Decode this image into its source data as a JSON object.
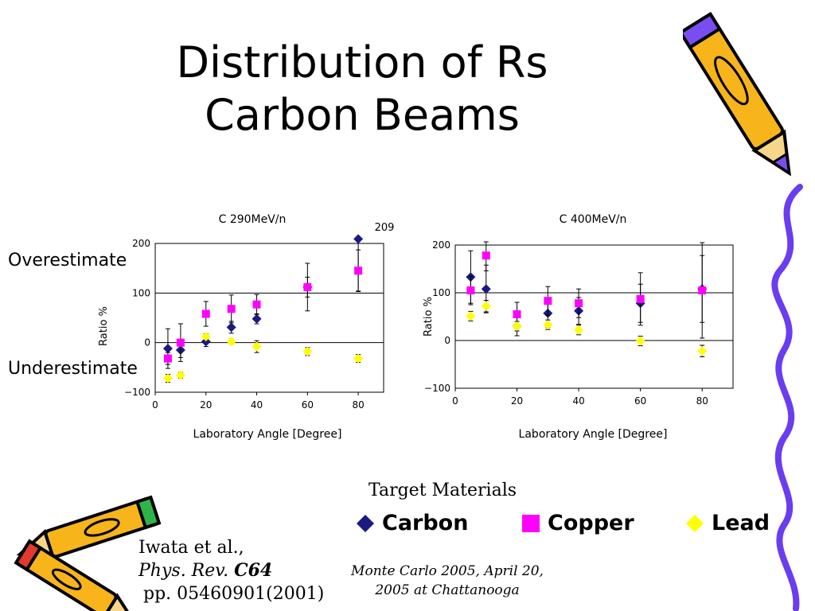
{
  "slide": {
    "title_line1": "Distribution of Rs",
    "title_line2": "Carbon Beams",
    "overestimate": "Overestimate",
    "underestimate": "Underestimate",
    "target_title": "Target Materials",
    "legend": [
      {
        "name": "Carbon",
        "color": "#1a1a80",
        "shape": "diamond"
      },
      {
        "name": "Copper",
        "color": "#ff00ff",
        "shape": "square"
      },
      {
        "name": "Lead",
        "color": "#ffff00",
        "shape": "diamond"
      }
    ],
    "citation": {
      "line1": "Iwata et al.,",
      "journal": "Phys. Rev.",
      "volume": "C64",
      "line3": "pp. 05460901(2001)"
    },
    "footer_line1": "Monte Carlo 2005, April 20,",
    "footer_line2": "2005 at Chattanooga"
  },
  "colors": {
    "carbon": "#1a1a80",
    "copper": "#ff00ff",
    "lead": "#ffff00"
  },
  "chart_data": [
    {
      "type": "scatter",
      "title": "C 290MeV/n",
      "xlabel": "Laboratory Angle [Degree]",
      "ylabel": "Ratio %",
      "xlim": [
        0,
        90
      ],
      "ylim": [
        -100,
        200
      ],
      "xticks": [
        0,
        20,
        40,
        60,
        80
      ],
      "yticks": [
        -100,
        0,
        100,
        200
      ],
      "ytick_labels": [
        "−100",
        "0",
        "100",
        "200"
      ],
      "grid": "horizontal lines at 0, 100, 200",
      "annotation": {
        "text": "209",
        "x": 80,
        "y": 209
      },
      "series": [
        {
          "name": "Carbon",
          "x": [
            5,
            10,
            20,
            30,
            40,
            60,
            80
          ],
          "y": [
            -12,
            -15,
            2,
            31,
            48,
            112,
            209
          ],
          "err": [
            40,
            15,
            10,
            12,
            10,
            20,
            105
          ]
        },
        {
          "name": "Copper",
          "x": [
            5,
            10,
            20,
            30,
            40,
            60,
            80
          ],
          "y": [
            -32,
            0,
            58,
            68,
            77,
            112,
            145
          ],
          "err": [
            12,
            38,
            25,
            28,
            20,
            48,
            42
          ]
        },
        {
          "name": "Lead",
          "x": [
            5,
            10,
            20,
            30,
            40,
            60,
            80
          ],
          "y": [
            -72,
            -66,
            12,
            2,
            -8,
            -18,
            -32
          ],
          "err": [
            8,
            6,
            6,
            5,
            12,
            8,
            8
          ]
        }
      ]
    },
    {
      "type": "scatter",
      "title": "C 400MeV/n",
      "xlabel": "Laboratory Angle [Degree]",
      "ylabel": "Ratio %",
      "xlim": [
        0,
        90
      ],
      "ylim": [
        -100,
        200
      ],
      "xticks": [
        0,
        20,
        40,
        60,
        80
      ],
      "yticks": [
        -100,
        0,
        100,
        200
      ],
      "ytick_labels": [
        "−100",
        "0",
        "100",
        "200"
      ],
      "grid": "horizontal lines at 0, 100, 200",
      "series": [
        {
          "name": "Carbon",
          "x": [
            5,
            10,
            20,
            30,
            40,
            60,
            80
          ],
          "y": [
            133,
            108,
            30,
            57,
            62,
            78,
            108
          ],
          "err": [
            55,
            50,
            20,
            30,
            28,
            40,
            70
          ]
        },
        {
          "name": "Copper",
          "x": [
            5,
            10,
            20,
            30,
            40,
            60,
            80
          ],
          "y": [
            105,
            178,
            55,
            83,
            78,
            87,
            105
          ],
          "err": [
            30,
            32,
            25,
            30,
            30,
            55,
            100
          ]
        },
        {
          "name": "Lead",
          "x": [
            5,
            10,
            20,
            30,
            40,
            60,
            80
          ],
          "y": [
            51,
            72,
            30,
            33,
            22,
            -1,
            -22
          ],
          "err": [
            10,
            12,
            10,
            10,
            10,
            10,
            12
          ]
        }
      ]
    }
  ]
}
